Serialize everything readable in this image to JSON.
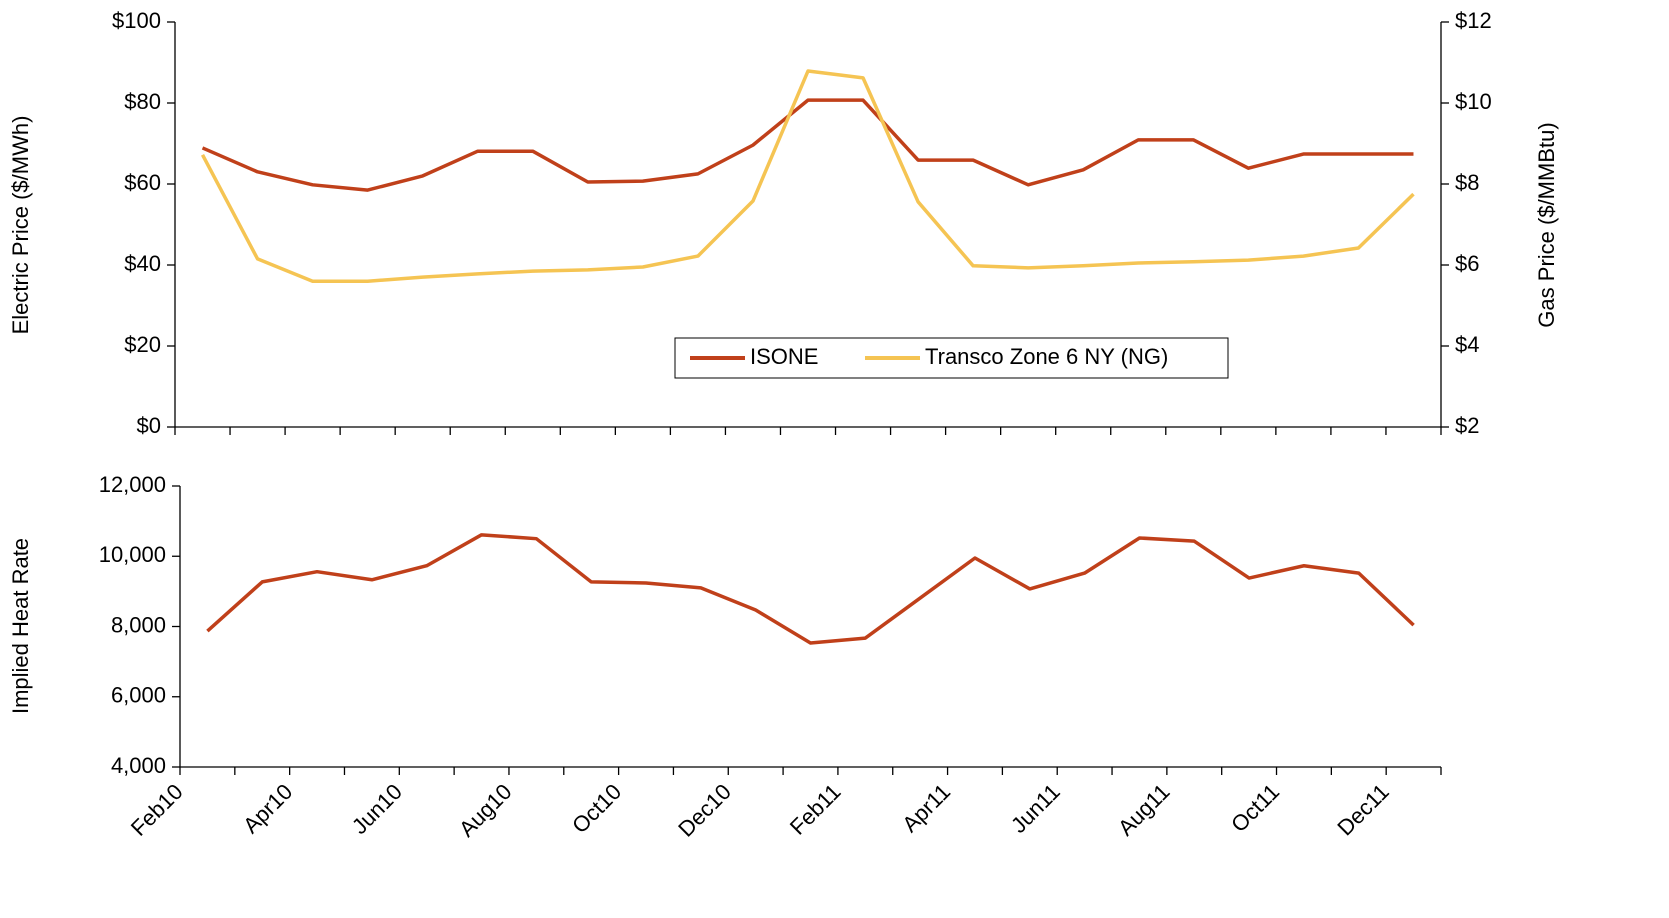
{
  "chart_data": [
    {
      "type": "line",
      "y_label": "Electric Price ($/MWh)",
      "y2_label": "Gas Price ($/MMBtu)",
      "ylim": [
        0,
        100
      ],
      "yticks": [
        {
          "value": 0,
          "label": "$0"
        },
        {
          "value": 20,
          "label": "$20"
        },
        {
          "value": 40,
          "label": "$40"
        },
        {
          "value": 60,
          "label": "$60"
        },
        {
          "value": 80,
          "label": "$80"
        },
        {
          "value": 100,
          "label": "$100"
        }
      ],
      "y2lim": [
        2,
        12
      ],
      "y2ticks": [
        {
          "value": 2,
          "label": "$2"
        },
        {
          "value": 4,
          "label": "$4"
        },
        {
          "value": 6,
          "label": "$6"
        },
        {
          "value": 8,
          "label": "$8"
        },
        {
          "value": 10,
          "label": "$10"
        },
        {
          "value": 12,
          "label": "$12"
        }
      ],
      "legend": "bottom-center",
      "series": [
        {
          "name": "ISONE",
          "color": "#c0401a",
          "values": [
            68.9,
            63,
            59.8,
            58.5,
            62,
            68.1,
            68.1,
            60.5,
            60.7,
            62.5,
            69.6,
            80.7,
            80.7,
            65.9,
            65.9,
            59.8,
            63.5,
            70.9,
            70.9,
            63.9,
            67.4,
            67.4,
            67.4
          ]
        },
        {
          "name": "Transco Zone 6 NY (NG)",
          "color": "#f5c453",
          "axis": "y2",
          "values": [
            8.72,
            6.15,
            5.6,
            5.6,
            5.7,
            5.78,
            5.85,
            5.88,
            5.95,
            6.22,
            7.58,
            10.79,
            10.62,
            7.56,
            5.98,
            5.93,
            5.98,
            6.05,
            6.08,
            6.12,
            6.22,
            6.42,
            7.75
          ]
        }
      ]
    },
    {
      "type": "line",
      "y_label": "Implied Heat Rate",
      "categories": [
        "Feb10",
        null,
        "Apr10",
        null,
        "Jun10",
        null,
        "Aug10",
        null,
        "Oct10",
        null,
        "Dec10",
        null,
        "Feb11",
        null,
        "Apr11",
        null,
        "Jun11",
        null,
        "Aug11",
        null,
        "Oct11",
        null,
        "Dec11"
      ],
      "ylim": [
        4000,
        12000
      ],
      "yticks": [
        {
          "value": 4000,
          "label": "4,000"
        },
        {
          "value": 6000,
          "label": "6,000"
        },
        {
          "value": 8000,
          "label": "8,000"
        },
        {
          "value": 10000,
          "label": "10,000"
        },
        {
          "value": 12000,
          "label": "12,000"
        }
      ],
      "series": [
        {
          "color": "#c0401a",
          "values": [
            7870,
            9270,
            9560,
            9330,
            9730,
            10610,
            10500,
            9270,
            9240,
            9100,
            8470,
            7530,
            7670,
            8810,
            9950,
            9070,
            9520,
            10520,
            10430,
            9380,
            9730,
            9520,
            8040
          ]
        }
      ]
    }
  ]
}
